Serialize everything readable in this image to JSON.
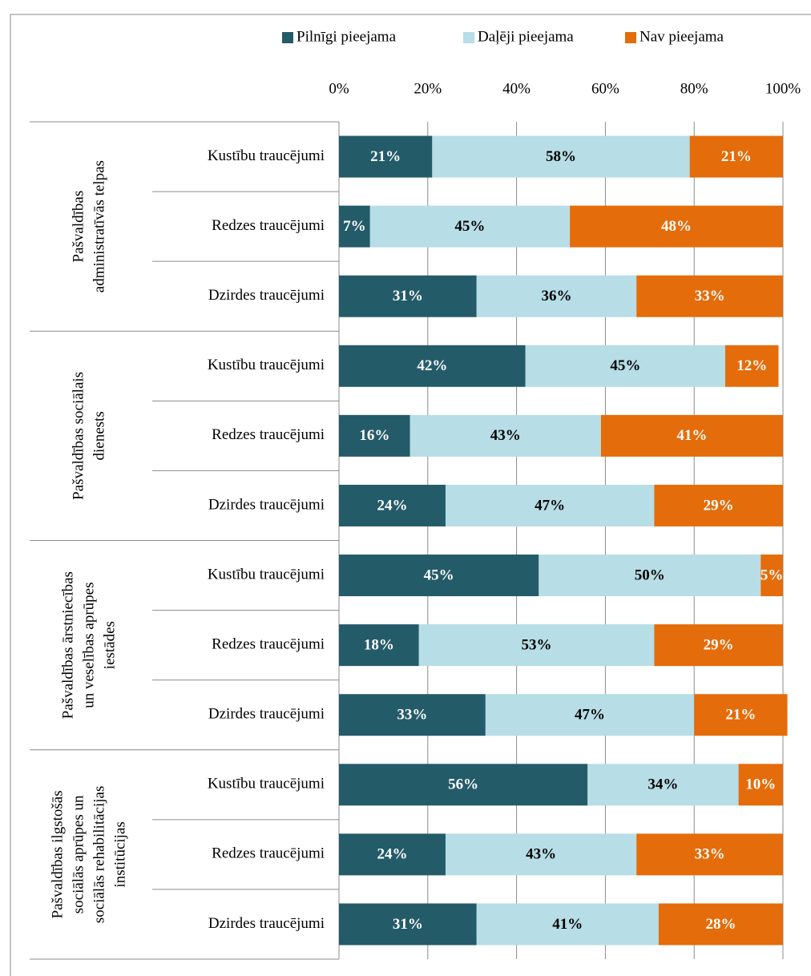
{
  "chart_data": {
    "type": "stacked_bar_horizontal",
    "categories": [
      "Kustību traucējumi",
      "Redzes traucējumi",
      "Dzirdes traucējumi",
      "Kustību traucējumi",
      "Redzes traucējumi",
      "Dzirdes traucējumi",
      "Kustību traucējumi",
      "Redzes traucējumi",
      "Dzirdes traucējumi",
      "Kustību traucējumi",
      "Redzes traucējumi",
      "Dzirdes traucējumi"
    ],
    "groups": [
      [
        "Pašvaldības",
        "administratīvās telpas"
      ],
      [
        "Pašvaldības sociālais",
        "dienests"
      ],
      [
        "Pašvaldības ārstniecības",
        "un veselības aprūpes",
        "iestādes"
      ],
      [
        "Pašvaldības ilgstošās",
        "sociālās aprūpes un",
        "sociālās rehabilitācijas",
        "institūcijas"
      ]
    ],
    "series": [
      {
        "name": "Pilnīgi pieejama",
        "color": "#245b69",
        "label_color": "#ffffff",
        "values": [
          21,
          7,
          31,
          42,
          16,
          24,
          45,
          18,
          33,
          56,
          24,
          31
        ],
        "value_labels": [
          "21%",
          "7%",
          "31%",
          "42%",
          "16%",
          "24%",
          "45%",
          "18%",
          "33%",
          "56%",
          "24%",
          "31%"
        ]
      },
      {
        "name": "Daļēji pieejama",
        "color": "#b7dde6",
        "label_color": "#000000",
        "values": [
          58,
          45,
          36,
          45,
          43,
          47,
          50,
          53,
          47,
          34,
          43,
          41
        ],
        "value_labels": [
          "58%",
          "45%",
          "36%",
          "45%",
          "43%",
          "47%",
          "50%",
          "53%",
          "47%",
          "34%",
          "43%",
          "41%"
        ]
      },
      {
        "name": "Nav pieejama",
        "color": "#e46c0a",
        "label_color": "#ffffff",
        "values": [
          21,
          48,
          33,
          12,
          41,
          29,
          5,
          29,
          21,
          10,
          33,
          28
        ],
        "value_labels": [
          "21%",
          "48%",
          "33%",
          "12%",
          "41%",
          "29%",
          "5%",
          "29%",
          "21%",
          "10%",
          "33%",
          "28%"
        ]
      }
    ],
    "xlim": [
      0,
      100
    ],
    "xticks": [
      {
        "value": 0,
        "label": "0%"
      },
      {
        "value": 20,
        "label": "20%"
      },
      {
        "value": 40,
        "label": "40%"
      },
      {
        "value": 60,
        "label": "60%"
      },
      {
        "value": 80,
        "label": "80%"
      },
      {
        "value": 100,
        "label": "100%"
      }
    ],
    "grid": true,
    "legend": "top"
  }
}
